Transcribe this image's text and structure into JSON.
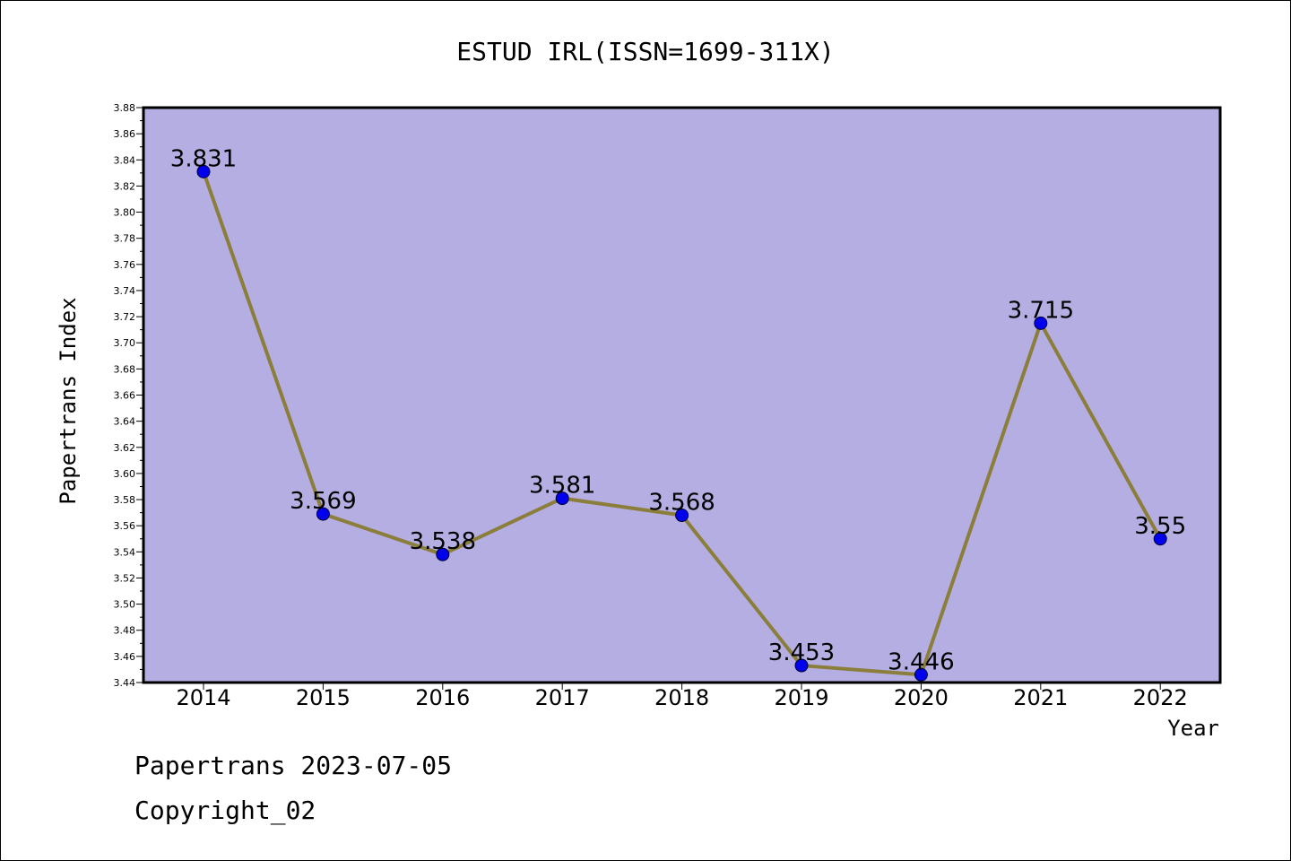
{
  "chart_data": {
    "type": "line",
    "title": "ESTUD IRL(ISSN=1699-311X)",
    "xlabel": "Year",
    "ylabel": "Papertrans Index",
    "categories": [
      "2014",
      "2015",
      "2016",
      "2017",
      "2018",
      "2019",
      "2020",
      "2021",
      "2022"
    ],
    "values": [
      3.831,
      3.569,
      3.538,
      3.581,
      3.568,
      3.453,
      3.446,
      3.715,
      3.55
    ],
    "data_labels": [
      "3.831",
      "3.569",
      "3.538",
      "3.581",
      "3.568",
      "3.453",
      "3.446",
      "3.715",
      "3.55"
    ],
    "ylim": [
      3.44,
      3.88
    ],
    "yticks": [
      "3.44",
      "3.46",
      "3.48",
      "3.50",
      "3.52",
      "3.54",
      "3.56",
      "3.58",
      "3.60",
      "3.62",
      "3.64",
      "3.66",
      "3.68",
      "3.70",
      "3.72",
      "3.74",
      "3.76",
      "3.78",
      "3.80",
      "3.82",
      "3.84",
      "3.86",
      "3.88"
    ],
    "grid": false,
    "colors": {
      "plot_background": "#b4aee2",
      "line": "#8b7d3a",
      "marker": "#0000ee",
      "axis": "#000000"
    }
  },
  "footer": {
    "date_text": "Papertrans 2023-07-05",
    "copyright_text": "Copyright_02"
  }
}
